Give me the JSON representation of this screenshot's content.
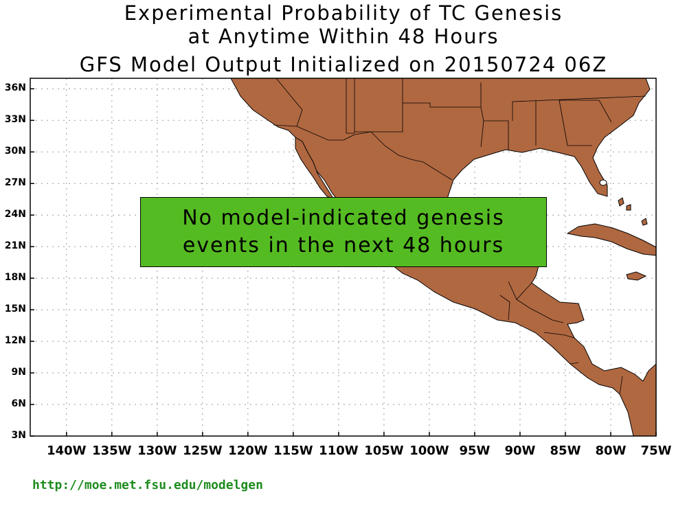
{
  "title": {
    "line1": "Experimental Probability of TC Genesis",
    "line2": "at Anytime Within 48 Hours",
    "line3": "GFS Model Output Initialized on 20150724 06Z"
  },
  "map": {
    "lat_labels": [
      "36N",
      "33N",
      "30N",
      "27N",
      "24N",
      "21N",
      "18N",
      "15N",
      "12N",
      "9N",
      "6N",
      "3N"
    ],
    "lon_labels": [
      "140W",
      "135W",
      "130W",
      "125W",
      "120W",
      "115W",
      "110W",
      "105W",
      "100W",
      "95W",
      "90W",
      "85W",
      "80W",
      "75W"
    ],
    "land_color": "#b06841",
    "ocean_color": "#ffffff",
    "grid": true
  },
  "notice": {
    "line1": "No model-indicated genesis",
    "line2": "events in the next 48 hours",
    "color": "#55bb22"
  },
  "source_url": "http://moe.met.fsu.edu/modelgen"
}
